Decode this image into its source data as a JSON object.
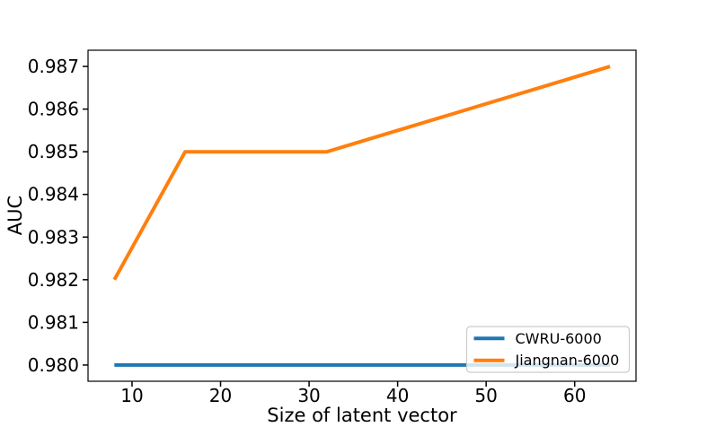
{
  "figure": {
    "background_color": "#ffffff",
    "text_color": "#000000"
  },
  "chart_data": {
    "type": "line",
    "title": "",
    "xlabel": "Size of latent vector",
    "ylabel": "AUC",
    "x": [
      8,
      16,
      32,
      64
    ],
    "series": [
      {
        "name": "CWRU-6000",
        "color": "#1f77b4",
        "values": [
          0.98,
          0.98,
          0.98,
          0.98
        ]
      },
      {
        "name": "Jiangnan-6000",
        "color": "#ff7f0e",
        "values": [
          0.982,
          0.985,
          0.985,
          0.987
        ]
      }
    ],
    "line_width": 4,
    "xlim": [
      5.03,
      66.93
    ],
    "ylim": [
      0.97962,
      0.98738
    ],
    "xticks": [
      10,
      20,
      30,
      40,
      50,
      60
    ],
    "xtick_labels": [
      "10",
      "20",
      "30",
      "40",
      "50",
      "60"
    ],
    "yticks": [
      0.98,
      0.981,
      0.982,
      0.983,
      0.984,
      0.985,
      0.986,
      0.987
    ],
    "ytick_labels": [
      "0.980",
      "0.981",
      "0.982",
      "0.983",
      "0.984",
      "0.985",
      "0.986",
      "0.987"
    ],
    "grid": false,
    "legend": {
      "position": "lower right",
      "entries": [
        "CWRU-6000",
        "Jiangnan-6000"
      ],
      "border_color": "#cccccc",
      "background_color": "rgba(255,255,255,0.8)"
    },
    "axis_color": "#000000"
  }
}
